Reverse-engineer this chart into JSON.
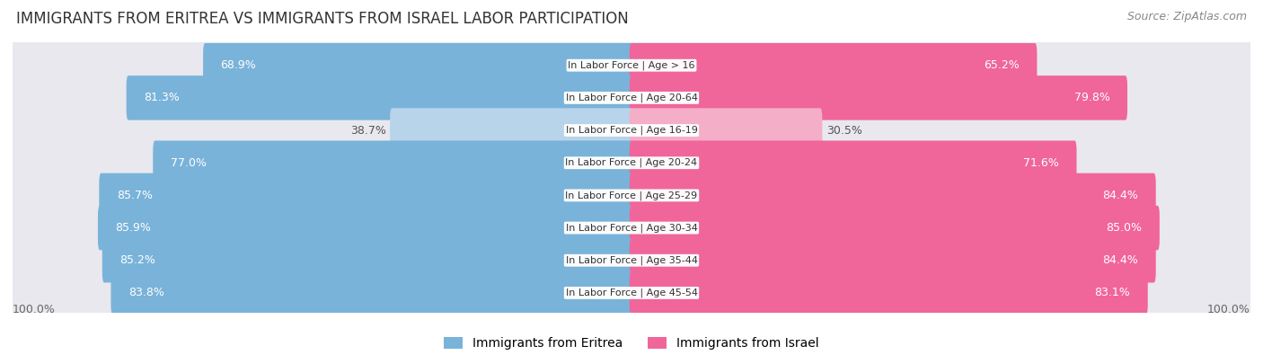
{
  "title": "IMMIGRANTS FROM ERITREA VS IMMIGRANTS FROM ISRAEL LABOR PARTICIPATION",
  "source": "Source: ZipAtlas.com",
  "categories": [
    "In Labor Force | Age > 16",
    "In Labor Force | Age 20-64",
    "In Labor Force | Age 16-19",
    "In Labor Force | Age 20-24",
    "In Labor Force | Age 25-29",
    "In Labor Force | Age 30-34",
    "In Labor Force | Age 35-44",
    "In Labor Force | Age 45-54"
  ],
  "eritrea_values": [
    68.9,
    81.3,
    38.7,
    77.0,
    85.7,
    85.9,
    85.2,
    83.8
  ],
  "israel_values": [
    65.2,
    79.8,
    30.5,
    71.6,
    84.4,
    85.0,
    84.4,
    83.1
  ],
  "eritrea_color": "#7ab3d9",
  "eritrea_color_light": "#b8d4ea",
  "israel_color": "#f0669a",
  "israel_color_light": "#f5aec8",
  "row_bg_color": "#e8e8ee",
  "label_color_white": "#ffffff",
  "label_color_dark": "#555555",
  "max_value": 100.0,
  "legend_eritrea": "Immigrants from Eritrea",
  "legend_israel": "Immigrants from Israel",
  "title_fontsize": 12,
  "source_fontsize": 9,
  "bar_label_fontsize": 9,
  "category_fontsize": 8,
  "legend_fontsize": 10
}
